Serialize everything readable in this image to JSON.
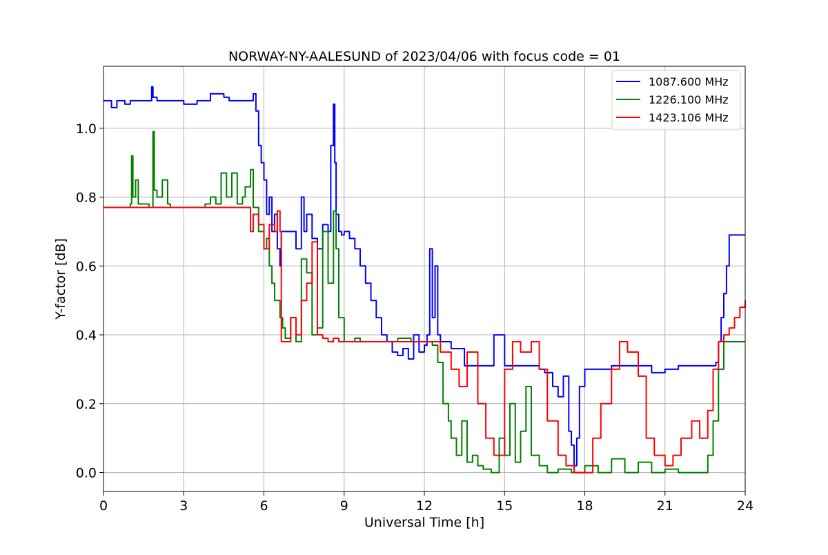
{
  "chart_data": {
    "type": "line",
    "title": "NORWAY-NY-AALESUND of 2023/04/06 with focus code = 01",
    "xlabel": "Universal Time [h]",
    "ylabel": "Y-factor [dB]",
    "xlim": [
      0,
      24
    ],
    "ylim": [
      -0.055,
      1.18
    ],
    "xticks": [
      0,
      3,
      6,
      9,
      12,
      15,
      18,
      21,
      24
    ],
    "xtick_labels": [
      "0",
      "3",
      "6",
      "9",
      "12",
      "15",
      "18",
      "21",
      "24"
    ],
    "yticks": [
      0.0,
      0.2,
      0.4,
      0.6,
      0.8,
      1.0
    ],
    "ytick_labels": [
      "0.0",
      "0.2",
      "0.4",
      "0.6",
      "0.8",
      "1.0"
    ],
    "grid": true,
    "legend_position": "top-right",
    "series": [
      {
        "name": "1087.600 MHz",
        "color": "#0000ff",
        "x": [
          0,
          0.3,
          0.5,
          0.8,
          1.0,
          1.5,
          1.8,
          1.85,
          2.0,
          2.5,
          3.0,
          3.5,
          4.0,
          4.5,
          4.7,
          5.0,
          5.5,
          5.6,
          5.7,
          5.8,
          5.9,
          6.0,
          6.1,
          6.2,
          6.3,
          6.4,
          6.5,
          6.6,
          6.65,
          6.8,
          7.0,
          7.2,
          7.4,
          7.5,
          7.6,
          7.8,
          8.0,
          8.2,
          8.4,
          8.5,
          8.6,
          8.65,
          8.7,
          8.8,
          8.9,
          9.0,
          9.2,
          9.4,
          9.6,
          9.8,
          10.0,
          10.2,
          10.4,
          10.6,
          10.8,
          11.0,
          11.2,
          11.4,
          11.6,
          11.8,
          12.0,
          12.1,
          12.2,
          12.3,
          12.4,
          12.5,
          12.6,
          13.0,
          13.5,
          14.0,
          14.3,
          14.5,
          14.6,
          15.0,
          15.5,
          16.0,
          16.3,
          16.5,
          16.8,
          17.0,
          17.2,
          17.4,
          17.5,
          17.6,
          17.7,
          17.8,
          18.0,
          18.5,
          19.0,
          19.5,
          20.0,
          20.5,
          21.0,
          21.5,
          22.0,
          22.5,
          22.7,
          22.9,
          23.0,
          23.1,
          23.2,
          23.3,
          23.4,
          23.5,
          24.0
        ],
        "y": [
          1.08,
          1.06,
          1.08,
          1.07,
          1.08,
          1.08,
          1.12,
          1.09,
          1.08,
          1.08,
          1.07,
          1.08,
          1.1,
          1.09,
          1.08,
          1.08,
          1.08,
          1.1,
          1.05,
          0.95,
          0.9,
          0.85,
          0.75,
          0.8,
          0.7,
          0.75,
          0.65,
          0.6,
          0.7,
          0.7,
          0.7,
          0.65,
          0.8,
          0.7,
          0.75,
          0.68,
          0.65,
          0.72,
          0.7,
          0.95,
          1.07,
          0.9,
          0.75,
          0.7,
          0.69,
          0.7,
          0.68,
          0.65,
          0.6,
          0.55,
          0.5,
          0.45,
          0.4,
          0.38,
          0.35,
          0.34,
          0.36,
          0.33,
          0.4,
          0.35,
          0.37,
          0.4,
          0.65,
          0.45,
          0.6,
          0.4,
          0.38,
          0.36,
          0.31,
          0.31,
          0.31,
          0.31,
          0.4,
          0.31,
          0.31,
          0.31,
          0.3,
          0.29,
          0.25,
          0.22,
          0.28,
          0.12,
          0.08,
          0.02,
          0.1,
          0.25,
          0.3,
          0.3,
          0.31,
          0.31,
          0.31,
          0.29,
          0.3,
          0.31,
          0.31,
          0.31,
          0.31,
          0.32,
          0.38,
          0.45,
          0.52,
          0.6,
          0.69,
          0.69,
          0.69
        ]
      },
      {
        "name": "1226.100 MHz",
        "color": "#008000",
        "x": [
          0,
          0.9,
          1.0,
          1.05,
          1.1,
          1.2,
          1.3,
          1.5,
          1.7,
          1.85,
          1.9,
          2.0,
          2.2,
          2.4,
          2.5,
          3.0,
          3.5,
          3.8,
          4.0,
          4.2,
          4.4,
          4.6,
          4.8,
          5.0,
          5.2,
          5.3,
          5.5,
          5.6,
          5.8,
          6.0,
          6.1,
          6.2,
          6.3,
          6.4,
          6.6,
          6.7,
          6.8,
          7.0,
          7.2,
          7.4,
          7.6,
          7.8,
          8.0,
          8.2,
          8.4,
          8.6,
          8.7,
          8.8,
          9.0,
          9.2,
          9.4,
          9.6,
          10.0,
          10.5,
          11.0,
          11.5,
          12.0,
          12.3,
          12.5,
          12.7,
          12.9,
          13.0,
          13.2,
          13.4,
          13.6,
          13.8,
          14.0,
          14.2,
          14.5,
          14.8,
          15.0,
          15.2,
          15.4,
          15.6,
          15.8,
          16.0,
          16.3,
          16.6,
          17.0,
          17.5,
          18.0,
          18.5,
          19.0,
          19.5,
          20.0,
          20.5,
          21.0,
          21.5,
          22.0,
          22.4,
          22.6,
          22.8,
          23.0,
          23.2,
          23.4,
          23.6,
          24.0
        ],
        "y": [
          0.77,
          0.77,
          0.78,
          0.92,
          0.8,
          0.85,
          0.78,
          0.78,
          0.77,
          0.99,
          0.82,
          0.8,
          0.85,
          0.78,
          0.77,
          0.77,
          0.77,
          0.78,
          0.8,
          0.78,
          0.87,
          0.8,
          0.87,
          0.78,
          0.8,
          0.83,
          0.88,
          0.77,
          0.7,
          0.65,
          0.68,
          0.6,
          0.55,
          0.5,
          0.45,
          0.42,
          0.39,
          0.45,
          0.38,
          0.62,
          0.58,
          0.4,
          0.42,
          0.7,
          0.55,
          0.76,
          0.65,
          0.45,
          0.38,
          0.38,
          0.39,
          0.38,
          0.38,
          0.38,
          0.39,
          0.38,
          0.38,
          0.37,
          0.32,
          0.2,
          0.15,
          0.1,
          0.05,
          0.15,
          0.03,
          0.05,
          0.02,
          0.01,
          0.0,
          0.1,
          0.05,
          0.2,
          0.03,
          0.12,
          0.25,
          0.05,
          0.02,
          0.0,
          0.01,
          0.0,
          0.02,
          0.0,
          0.04,
          0.0,
          0.03,
          0.0,
          0.01,
          0.0,
          0.0,
          0.0,
          0.05,
          0.15,
          0.3,
          0.38,
          0.38,
          0.38,
          0.38
        ]
      },
      {
        "name": "1423.106 MHz",
        "color": "#ff0000",
        "x": [
          0,
          1.0,
          2.0,
          3.0,
          4.0,
          4.5,
          5.0,
          5.3,
          5.5,
          5.6,
          5.8,
          6.0,
          6.2,
          6.4,
          6.5,
          6.6,
          6.65,
          7.0,
          7.2,
          7.4,
          7.6,
          7.8,
          8.0,
          8.2,
          8.4,
          8.6,
          8.8,
          9.0,
          9.5,
          10.0,
          10.5,
          11.0,
          11.5,
          12.0,
          12.3,
          12.6,
          13.0,
          13.3,
          13.6,
          14.0,
          14.3,
          14.6,
          15.0,
          15.3,
          15.6,
          16.0,
          16.3,
          16.6,
          17.0,
          17.3,
          17.6,
          18.0,
          18.3,
          18.6,
          19.0,
          19.3,
          19.6,
          20.0,
          20.3,
          20.6,
          21.0,
          21.3,
          21.6,
          22.0,
          22.3,
          22.6,
          22.8,
          23.0,
          23.2,
          23.4,
          23.6,
          23.8,
          24.0
        ],
        "y": [
          0.77,
          0.77,
          0.77,
          0.77,
          0.77,
          0.77,
          0.77,
          0.77,
          0.7,
          0.75,
          0.72,
          0.65,
          0.72,
          0.7,
          0.76,
          0.7,
          0.38,
          0.45,
          0.4,
          0.5,
          0.55,
          0.67,
          0.4,
          0.39,
          0.38,
          0.39,
          0.38,
          0.38,
          0.38,
          0.38,
          0.38,
          0.38,
          0.38,
          0.38,
          0.38,
          0.35,
          0.3,
          0.25,
          0.35,
          0.2,
          0.1,
          0.05,
          0.3,
          0.38,
          0.35,
          0.38,
          0.3,
          0.15,
          0.05,
          0.02,
          0.0,
          0.0,
          0.1,
          0.2,
          0.3,
          0.38,
          0.35,
          0.28,
          0.1,
          0.05,
          0.02,
          0.05,
          0.1,
          0.15,
          0.1,
          0.18,
          0.3,
          0.38,
          0.4,
          0.42,
          0.45,
          0.48,
          0.5
        ]
      }
    ]
  }
}
